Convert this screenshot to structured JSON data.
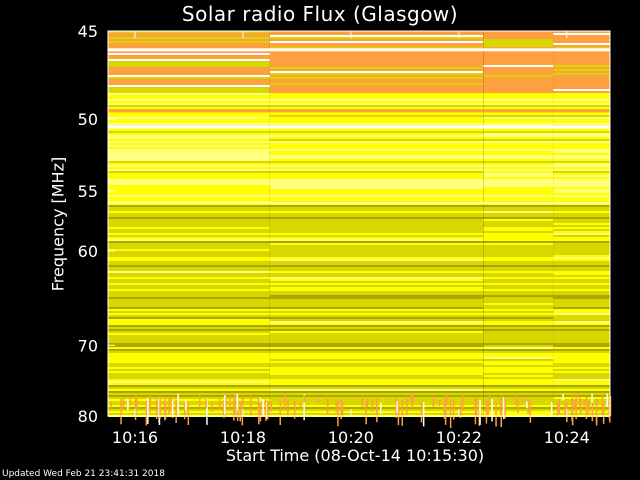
{
  "chart_data": {
    "type": "heatmap",
    "title": "Solar radio Flux (Glasgow)",
    "ylabel": "Frequency [MHz]",
    "xlabel": "Start Time (08-Oct-14 10:15:30)",
    "updated_text": "Updated Wed Feb 21 23:41:31 2018",
    "x_start_minutes": 15.5,
    "x_end_minutes": 24.8,
    "x_ticks": [
      {
        "minute": 16,
        "label": "10:16"
      },
      {
        "minute": 18,
        "label": "10:18"
      },
      {
        "minute": 20,
        "label": "10:20"
      },
      {
        "minute": 22,
        "label": "10:22"
      },
      {
        "minute": 24,
        "label": "10:24"
      }
    ],
    "ylim": [
      45,
      80
    ],
    "y_ticks": [
      45,
      50,
      55,
      60,
      70,
      80
    ],
    "y_scale": "reciprocal",
    "colormap": [
      "#a8a800",
      "#d8d800",
      "#ffff00",
      "#ffff80",
      "#ffa040",
      "#ffffff"
    ],
    "segment_boundaries_minutes": [
      18.5,
      22.45,
      23.75
    ]
  }
}
